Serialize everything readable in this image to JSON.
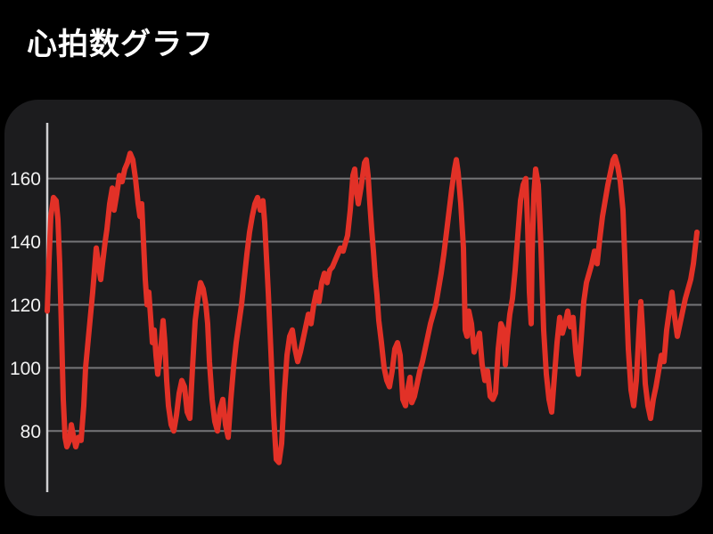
{
  "title": "心拍数グラフ",
  "colors": {
    "page_bg": "#000000",
    "panel_bg": "#1c1c1e",
    "grid": "#757578",
    "axis": "#cfcfd2",
    "tick_label": "#f2f2f2",
    "line": "#e23127"
  },
  "chart_data": {
    "type": "line",
    "title": "心拍数グラフ",
    "xlabel": "",
    "ylabel": "",
    "legend": "none",
    "grid": "horizontal-only",
    "y_ticks": [
      160,
      140,
      120,
      100,
      80
    ],
    "ylim": [
      53,
      185
    ],
    "x_unit": "px",
    "series": [
      {
        "points": [
          [
            53,
            118
          ],
          [
            55,
            134
          ],
          [
            57,
            148
          ],
          [
            60,
            154
          ],
          [
            63,
            153
          ],
          [
            65,
            147
          ],
          [
            67,
            133
          ],
          [
            69,
            112
          ],
          [
            71,
            90
          ],
          [
            73,
            78
          ],
          [
            75,
            75
          ],
          [
            78,
            77
          ],
          [
            80,
            82
          ],
          [
            82,
            79
          ],
          [
            85,
            75
          ],
          [
            88,
            78
          ],
          [
            91,
            77
          ],
          [
            94,
            88
          ],
          [
            96,
            100
          ],
          [
            98,
            106
          ],
          [
            100,
            112
          ],
          [
            102,
            118
          ],
          [
            104,
            124
          ],
          [
            106,
            131
          ],
          [
            108,
            138
          ],
          [
            111,
            132
          ],
          [
            113,
            128
          ],
          [
            115,
            133
          ],
          [
            118,
            140
          ],
          [
            120,
            144
          ],
          [
            123,
            152
          ],
          [
            126,
            157
          ],
          [
            128,
            150
          ],
          [
            131,
            155
          ],
          [
            134,
            161
          ],
          [
            137,
            159
          ],
          [
            140,
            163
          ],
          [
            143,
            165
          ],
          [
            146,
            168
          ],
          [
            149,
            166
          ],
          [
            152,
            160
          ],
          [
            155,
            152
          ],
          [
            157,
            148
          ],
          [
            159,
            152
          ],
          [
            161,
            140
          ],
          [
            163,
            128
          ],
          [
            165,
            120
          ],
          [
            167,
            124
          ],
          [
            169,
            116
          ],
          [
            171,
            108
          ],
          [
            173,
            112
          ],
          [
            175,
            104
          ],
          [
            177,
            98
          ],
          [
            179,
            103
          ],
          [
            181,
            108
          ],
          [
            183,
            115
          ],
          [
            185,
            108
          ],
          [
            187,
            96
          ],
          [
            189,
            88
          ],
          [
            192,
            82
          ],
          [
            195,
            80
          ],
          [
            198,
            85
          ],
          [
            201,
            92
          ],
          [
            204,
            96
          ],
          [
            207,
            94
          ],
          [
            210,
            86
          ],
          [
            213,
            84
          ],
          [
            216,
            100
          ],
          [
            219,
            115
          ],
          [
            222,
            122
          ],
          [
            225,
            127
          ],
          [
            228,
            125
          ],
          [
            231,
            120
          ],
          [
            233,
            114
          ],
          [
            235,
            102
          ],
          [
            238,
            90
          ],
          [
            241,
            83
          ],
          [
            244,
            80
          ],
          [
            247,
            87
          ],
          [
            250,
            90
          ],
          [
            253,
            82
          ],
          [
            256,
            78
          ],
          [
            259,
            90
          ],
          [
            262,
            100
          ],
          [
            265,
            108
          ],
          [
            268,
            114
          ],
          [
            271,
            120
          ],
          [
            274,
            128
          ],
          [
            277,
            136
          ],
          [
            280,
            143
          ],
          [
            283,
            148
          ],
          [
            286,
            152
          ],
          [
            289,
            154
          ],
          [
            292,
            150
          ],
          [
            295,
            153
          ],
          [
            297,
            146
          ],
          [
            299,
            135
          ],
          [
            301,
            124
          ],
          [
            304,
            105
          ],
          [
            307,
            85
          ],
          [
            310,
            71
          ],
          [
            313,
            70
          ],
          [
            316,
            76
          ],
          [
            319,
            92
          ],
          [
            322,
            104
          ],
          [
            325,
            110
          ],
          [
            328,
            112
          ],
          [
            331,
            106
          ],
          [
            334,
            102
          ],
          [
            337,
            105
          ],
          [
            340,
            109
          ],
          [
            343,
            113
          ],
          [
            346,
            117
          ],
          [
            349,
            114
          ],
          [
            352,
            120
          ],
          [
            355,
            124
          ],
          [
            358,
            121
          ],
          [
            361,
            127
          ],
          [
            364,
            130
          ],
          [
            367,
            127
          ],
          [
            370,
            131
          ],
          [
            373,
            132
          ],
          [
            376,
            134
          ],
          [
            379,
            136
          ],
          [
            382,
            138
          ],
          [
            385,
            137
          ],
          [
            388,
            140
          ],
          [
            390,
            142
          ],
          [
            393,
            150
          ],
          [
            396,
            161
          ],
          [
            398,
            163
          ],
          [
            400,
            156
          ],
          [
            402,
            152
          ],
          [
            405,
            157
          ],
          [
            407,
            161
          ],
          [
            409,
            165
          ],
          [
            411,
            166
          ],
          [
            413,
            161
          ],
          [
            415,
            152
          ],
          [
            417,
            144
          ],
          [
            419,
            137
          ],
          [
            421,
            129
          ],
          [
            423,
            123
          ],
          [
            425,
            115
          ],
          [
            428,
            108
          ],
          [
            431,
            100
          ],
          [
            434,
            96
          ],
          [
            437,
            94
          ],
          [
            440,
            99
          ],
          [
            443,
            106
          ],
          [
            446,
            108
          ],
          [
            449,
            104
          ],
          [
            452,
            90
          ],
          [
            455,
            88
          ],
          [
            458,
            94
          ],
          [
            460,
            97
          ],
          [
            462,
            89
          ],
          [
            465,
            91
          ],
          [
            468,
            95
          ],
          [
            471,
            99
          ],
          [
            474,
            102
          ],
          [
            477,
            106
          ],
          [
            480,
            110
          ],
          [
            483,
            114
          ],
          [
            486,
            117
          ],
          [
            489,
            120
          ],
          [
            492,
            125
          ],
          [
            495,
            130
          ],
          [
            498,
            136
          ],
          [
            501,
            143
          ],
          [
            504,
            150
          ],
          [
            507,
            157
          ],
          [
            510,
            163
          ],
          [
            512,
            166
          ],
          [
            514,
            162
          ],
          [
            517,
            152
          ],
          [
            520,
            138
          ],
          [
            522,
            112
          ],
          [
            524,
            110
          ],
          [
            526,
            118
          ],
          [
            529,
            114
          ],
          [
            532,
            105
          ],
          [
            535,
            108
          ],
          [
            538,
            111
          ],
          [
            541,
            101
          ],
          [
            544,
            96
          ],
          [
            547,
            99
          ],
          [
            550,
            91
          ],
          [
            553,
            90
          ],
          [
            556,
            92
          ],
          [
            559,
            106
          ],
          [
            562,
            114
          ],
          [
            565,
            112
          ],
          [
            567,
            101
          ],
          [
            569,
            109
          ],
          [
            572,
            117
          ],
          [
            575,
            122
          ],
          [
            578,
            131
          ],
          [
            581,
            142
          ],
          [
            584,
            153
          ],
          [
            587,
            158
          ],
          [
            590,
            160
          ],
          [
            592,
            145
          ],
          [
            594,
            124
          ],
          [
            596,
            114
          ],
          [
            597,
            136
          ],
          [
            599,
            155
          ],
          [
            601,
            163
          ],
          [
            604,
            158
          ],
          [
            607,
            138
          ],
          [
            610,
            112
          ],
          [
            613,
            98
          ],
          [
            616,
            90
          ],
          [
            619,
            86
          ],
          [
            622,
            97
          ],
          [
            625,
            108
          ],
          [
            628,
            116
          ],
          [
            631,
            111
          ],
          [
            634,
            114
          ],
          [
            637,
            118
          ],
          [
            640,
            113
          ],
          [
            643,
            116
          ],
          [
            646,
            105
          ],
          [
            649,
            98
          ],
          [
            652,
            109
          ],
          [
            655,
            121
          ],
          [
            658,
            127
          ],
          [
            661,
            130
          ],
          [
            664,
            133
          ],
          [
            667,
            137
          ],
          [
            670,
            133
          ],
          [
            673,
            141
          ],
          [
            676,
            148
          ],
          [
            679,
            153
          ],
          [
            682,
            158
          ],
          [
            685,
            162
          ],
          [
            688,
            166
          ],
          [
            690,
            167
          ],
          [
            693,
            164
          ],
          [
            696,
            159
          ],
          [
            699,
            150
          ],
          [
            702,
            128
          ],
          [
            705,
            106
          ],
          [
            708,
            93
          ],
          [
            711,
            88
          ],
          [
            714,
            96
          ],
          [
            717,
            112
          ],
          [
            719,
            121
          ],
          [
            721,
            112
          ],
          [
            724,
            95
          ],
          [
            727,
            88
          ],
          [
            730,
            84
          ],
          [
            733,
            90
          ],
          [
            736,
            94
          ],
          [
            739,
            99
          ],
          [
            742,
            104
          ],
          [
            745,
            102
          ],
          [
            748,
            112
          ],
          [
            751,
            118
          ],
          [
            754,
            124
          ],
          [
            757,
            116
          ],
          [
            760,
            110
          ],
          [
            763,
            114
          ],
          [
            766,
            118
          ],
          [
            769,
            122
          ],
          [
            772,
            125
          ],
          [
            775,
            128
          ],
          [
            778,
            133
          ],
          [
            780,
            138
          ],
          [
            782,
            143
          ]
        ]
      }
    ]
  }
}
